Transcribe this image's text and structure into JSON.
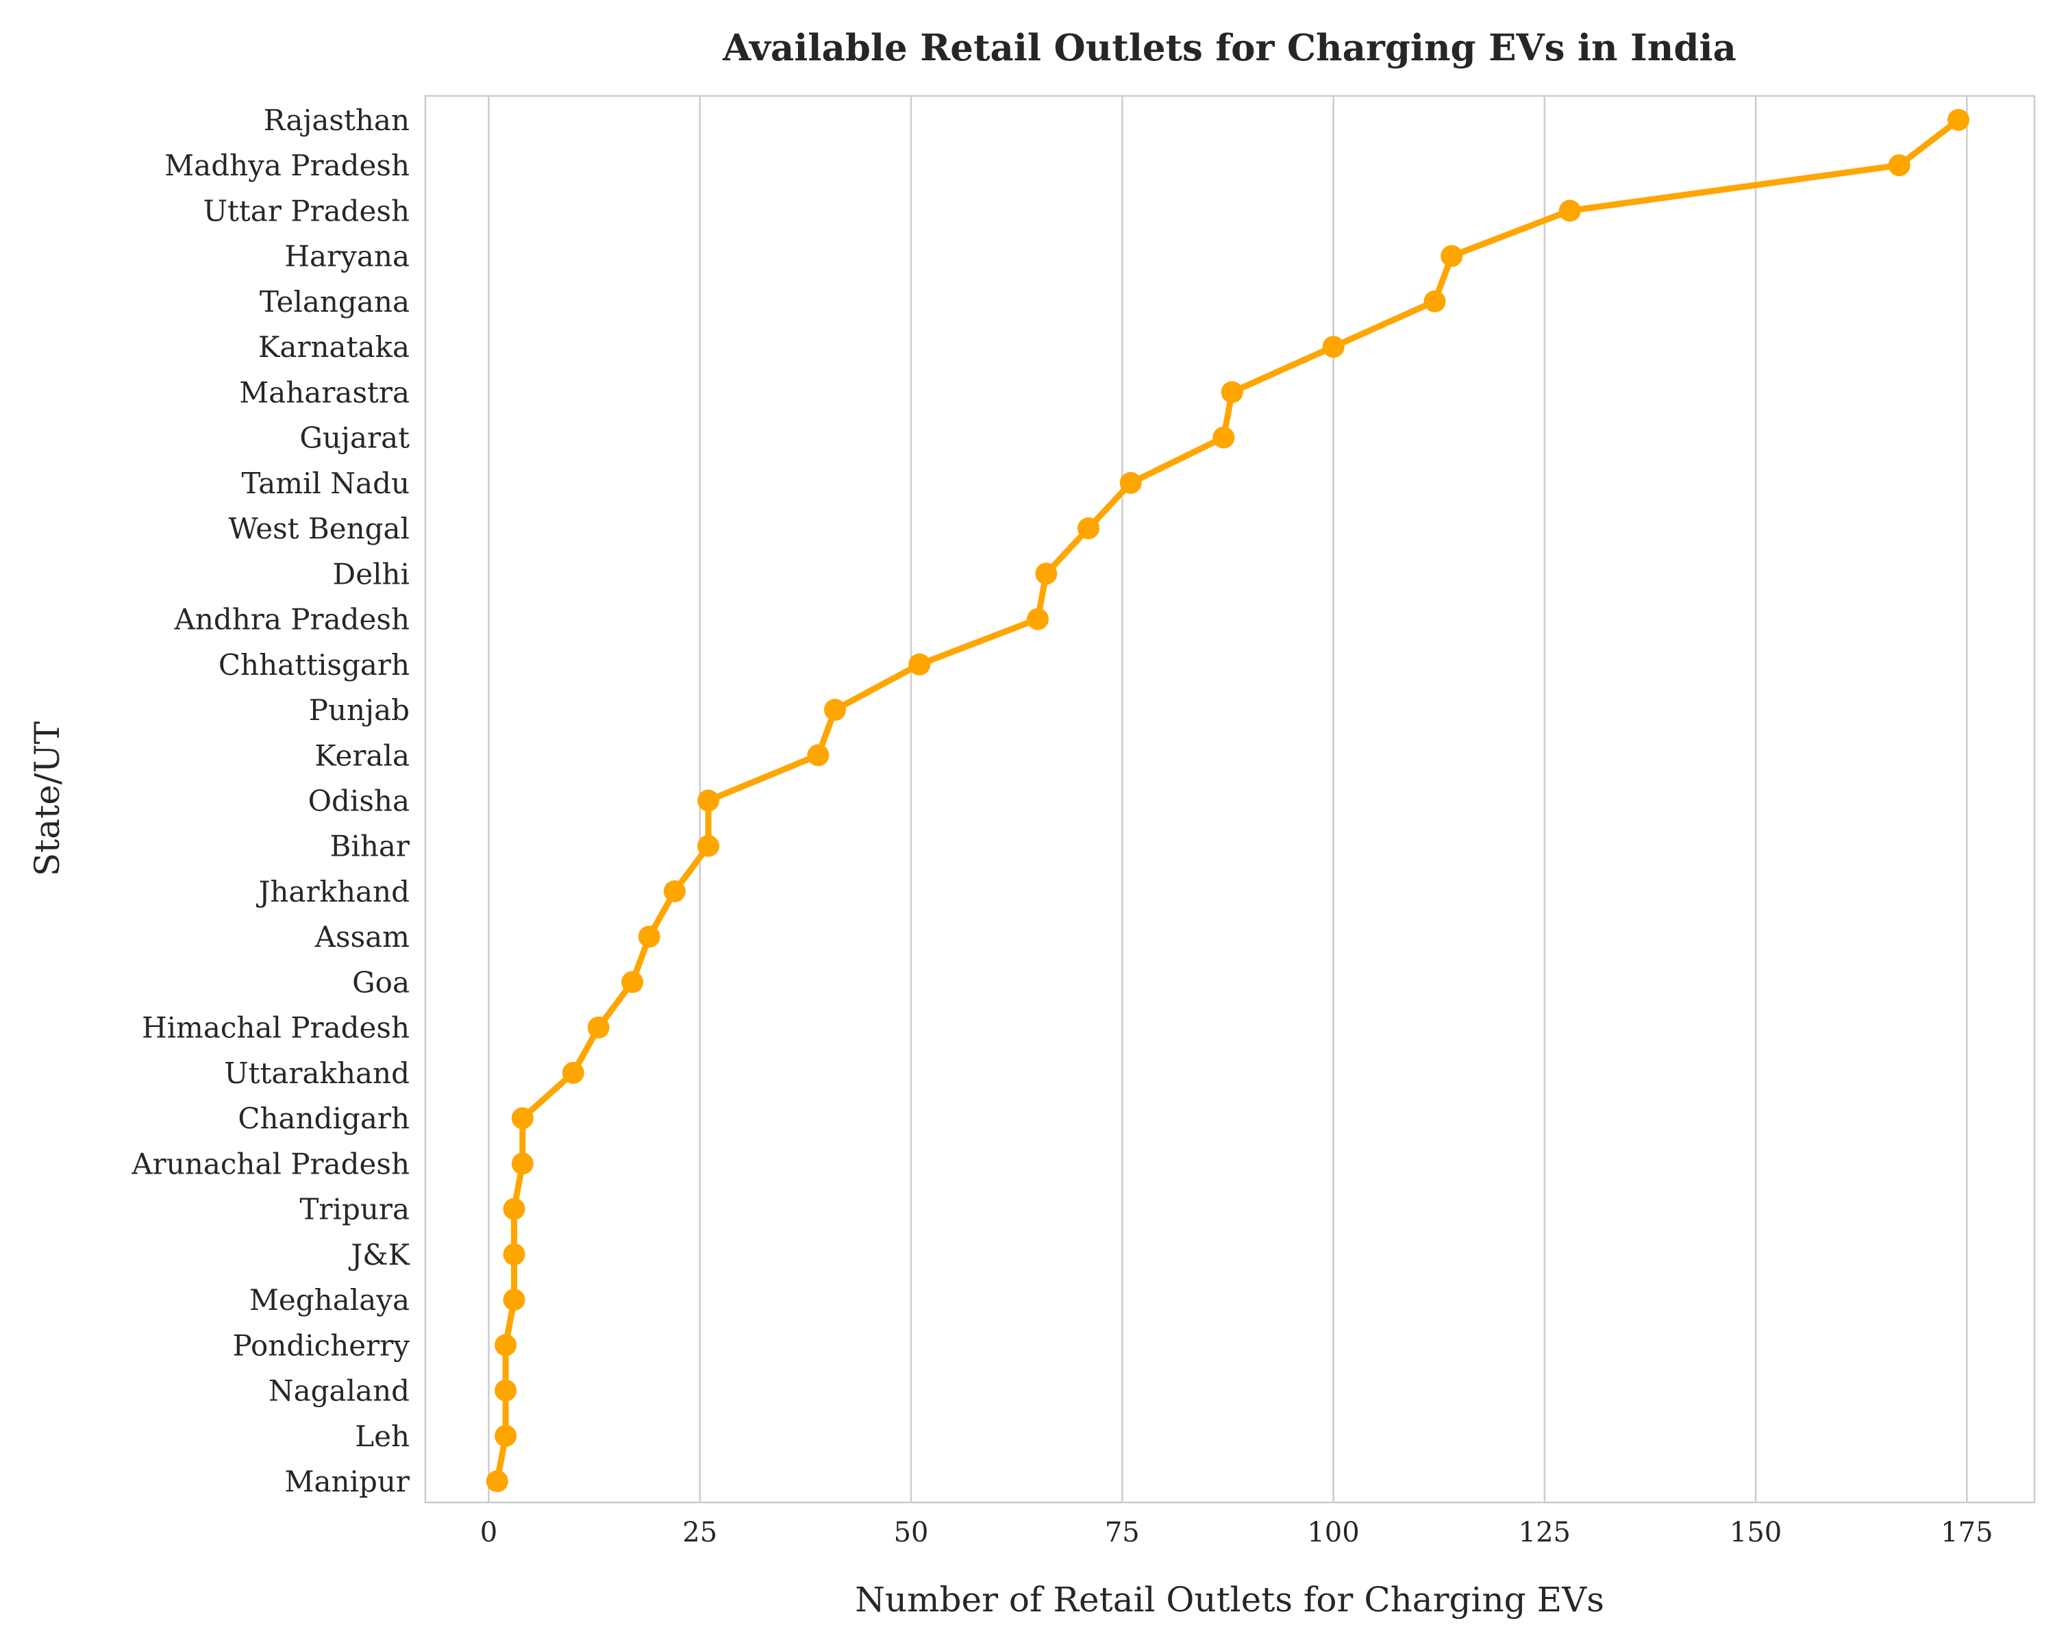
{
  "chart_data": {
    "type": "line",
    "title": "Available Retail Outlets for Charging EVs in India",
    "xlabel": "Number of Retail Outlets for Charging EVs",
    "ylabel": "State/UT",
    "xlim": [
      -7.5,
      183
    ],
    "xticks": [
      0,
      25,
      50,
      75,
      100,
      125,
      150,
      175
    ],
    "grid": "vertical",
    "legend": "none",
    "orientation": "horizontal",
    "categories": [
      "Rajasthan",
      "Madhya Pradesh",
      "Uttar Pradesh",
      "Haryana",
      "Telangana",
      "Karnataka",
      "Maharastra",
      "Gujarat",
      "Tamil Nadu",
      "West Bengal",
      "Delhi",
      "Andhra Pradesh",
      "Chhattisgarh",
      "Punjab",
      "Kerala",
      "Odisha",
      "Bihar",
      "Jharkhand",
      "Assam",
      "Goa",
      "Himachal Pradesh",
      "Uttarakhand",
      "Chandigarh",
      "Arunachal Pradesh",
      "Tripura",
      "J&K",
      "Meghalaya",
      "Pondicherry",
      "Nagaland",
      "Leh",
      "Manipur"
    ],
    "values": [
      174,
      167,
      128,
      114,
      112,
      100,
      88,
      87,
      76,
      71,
      66,
      65,
      51,
      41,
      39,
      26,
      26,
      22,
      19,
      17,
      13,
      10,
      4,
      4,
      3,
      3,
      3,
      2,
      2,
      2,
      1
    ],
    "colors": {
      "line": "#FFA500",
      "grid": "#cccccc",
      "spine": "#cccccc",
      "text": "#262626"
    }
  }
}
